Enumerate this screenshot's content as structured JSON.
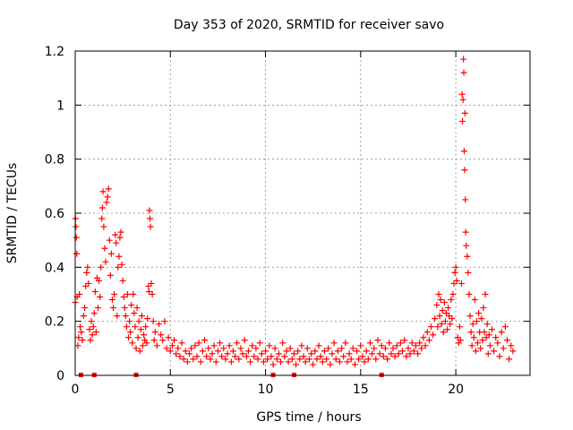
{
  "chart_data": {
    "type": "scatter",
    "title": "Day 353 of 2020, SRMTID for receiver savo",
    "xlabel": "GPS time / hours",
    "ylabel": "SRMTID / TECUs",
    "xlim": [
      0,
      23.9
    ],
    "ylim": [
      0,
      1.2
    ],
    "xticks": [
      0,
      5,
      10,
      15,
      20
    ],
    "yticks": [
      0,
      0.2,
      0.4,
      0.6,
      0.8,
      1,
      1.2
    ],
    "xtick_labels": [
      "0",
      "5",
      "10",
      "15",
      "20"
    ],
    "ytick_labels": [
      "0",
      "0.2",
      "0.4",
      "0.6",
      "0.8",
      "1",
      "1.2"
    ],
    "grid": true,
    "marker": "plus",
    "color": "#ff0000",
    "series": [
      {
        "name": "SRMTID",
        "points": [
          [
            0.0,
            0.27
          ],
          [
            0.02,
            0.58
          ],
          [
            0.04,
            0.55
          ],
          [
            0.06,
            0.51
          ],
          [
            0.08,
            0.45
          ],
          [
            0.1,
            0.29
          ],
          [
            0.14,
            0.11
          ],
          [
            0.18,
            0.14
          ],
          [
            0.22,
            0.3
          ],
          [
            0.26,
            0.18
          ],
          [
            0.32,
            0.16
          ],
          [
            0.38,
            0.13
          ],
          [
            0.44,
            0.22
          ],
          [
            0.5,
            0.25
          ],
          [
            0.55,
            0.33
          ],
          [
            0.6,
            0.38
          ],
          [
            0.65,
            0.4
          ],
          [
            0.7,
            0.34
          ],
          [
            0.75,
            0.17
          ],
          [
            0.8,
            0.13
          ],
          [
            0.85,
            0.2
          ],
          [
            0.9,
            0.15
          ],
          [
            0.95,
            0.18
          ],
          [
            1.0,
            0.23
          ],
          [
            1.05,
            0.31
          ],
          [
            1.1,
            0.16
          ],
          [
            1.15,
            0.36
          ],
          [
            1.2,
            0.25
          ],
          [
            1.25,
            0.35
          ],
          [
            1.3,
            0.29
          ],
          [
            1.35,
            0.4
          ],
          [
            1.4,
            0.58
          ],
          [
            1.43,
            0.62
          ],
          [
            1.46,
            0.68
          ],
          [
            1.5,
            0.55
          ],
          [
            1.55,
            0.47
          ],
          [
            1.6,
            0.42
          ],
          [
            1.65,
            0.64
          ],
          [
            1.7,
            0.66
          ],
          [
            1.75,
            0.69
          ],
          [
            1.8,
            0.5
          ],
          [
            1.85,
            0.37
          ],
          [
            1.9,
            0.45
          ],
          [
            1.95,
            0.28
          ],
          [
            2.0,
            0.25
          ],
          [
            2.05,
            0.3
          ],
          [
            2.1,
            0.52
          ],
          [
            2.15,
            0.49
          ],
          [
            2.2,
            0.22
          ],
          [
            2.25,
            0.4
          ],
          [
            2.3,
            0.44
          ],
          [
            2.35,
            0.51
          ],
          [
            2.4,
            0.53
          ],
          [
            2.45,
            0.41
          ],
          [
            2.5,
            0.35
          ],
          [
            2.55,
            0.29
          ],
          [
            2.6,
            0.25
          ],
          [
            2.65,
            0.22
          ],
          [
            2.7,
            0.18
          ],
          [
            2.75,
            0.3
          ],
          [
            2.8,
            0.14
          ],
          [
            2.85,
            0.2
          ],
          [
            2.9,
            0.16
          ],
          [
            2.95,
            0.26
          ],
          [
            3.0,
            0.12
          ],
          [
            3.05,
            0.3
          ],
          [
            3.1,
            0.23
          ],
          [
            3.15,
            0.18
          ],
          [
            3.2,
            0.1
          ],
          [
            3.25,
            0.25
          ],
          [
            3.3,
            0.14
          ],
          [
            3.35,
            0.2
          ],
          [
            3.4,
            0.09
          ],
          [
            3.45,
            0.17
          ],
          [
            3.5,
            0.22
          ],
          [
            3.55,
            0.11
          ],
          [
            3.6,
            0.15
          ],
          [
            3.65,
            0.13
          ],
          [
            3.7,
            0.18
          ],
          [
            3.75,
            0.12
          ],
          [
            3.8,
            0.21
          ],
          [
            3.85,
            0.33
          ],
          [
            3.88,
            0.31
          ],
          [
            3.9,
            0.61
          ],
          [
            3.93,
            0.58
          ],
          [
            3.96,
            0.55
          ],
          [
            4.0,
            0.34
          ],
          [
            4.05,
            0.3
          ],
          [
            4.1,
            0.2
          ],
          [
            4.15,
            0.13
          ],
          [
            4.2,
            0.16
          ],
          [
            4.3,
            0.11
          ],
          [
            4.4,
            0.19
          ],
          [
            4.5,
            0.15
          ],
          [
            4.6,
            0.13
          ],
          [
            4.7,
            0.2
          ],
          [
            4.8,
            0.1
          ],
          [
            4.9,
            0.14
          ],
          [
            5.0,
            0.09
          ],
          [
            5.1,
            0.11
          ],
          [
            5.2,
            0.13
          ],
          [
            5.3,
            0.08
          ],
          [
            5.4,
            0.1
          ],
          [
            5.5,
            0.07
          ],
          [
            5.6,
            0.12
          ],
          [
            5.7,
            0.06
          ],
          [
            5.8,
            0.09
          ],
          [
            5.9,
            0.05
          ],
          [
            6.0,
            0.08
          ],
          [
            6.1,
            0.1
          ],
          [
            6.2,
            0.06
          ],
          [
            6.3,
            0.11
          ],
          [
            6.4,
            0.07
          ],
          [
            6.5,
            0.12
          ],
          [
            6.6,
            0.05
          ],
          [
            6.7,
            0.09
          ],
          [
            6.8,
            0.13
          ],
          [
            6.9,
            0.07
          ],
          [
            7.0,
            0.1
          ],
          [
            7.1,
            0.06
          ],
          [
            7.2,
            0.08
          ],
          [
            7.3,
            0.11
          ],
          [
            7.4,
            0.05
          ],
          [
            7.5,
            0.09
          ],
          [
            7.6,
            0.12
          ],
          [
            7.7,
            0.07
          ],
          [
            7.8,
            0.1
          ],
          [
            7.9,
            0.06
          ],
          [
            8.0,
            0.08
          ],
          [
            8.1,
            0.11
          ],
          [
            8.2,
            0.05
          ],
          [
            8.3,
            0.09
          ],
          [
            8.4,
            0.07
          ],
          [
            8.5,
            0.12
          ],
          [
            8.6,
            0.06
          ],
          [
            8.7,
            0.1
          ],
          [
            8.8,
            0.08
          ],
          [
            8.9,
            0.13
          ],
          [
            9.0,
            0.07
          ],
          [
            9.1,
            0.09
          ],
          [
            9.2,
            0.05
          ],
          [
            9.3,
            0.11
          ],
          [
            9.4,
            0.07
          ],
          [
            9.5,
            0.1
          ],
          [
            9.6,
            0.06
          ],
          [
            9.7,
            0.12
          ],
          [
            9.8,
            0.08
          ],
          [
            9.9,
            0.05
          ],
          [
            10.0,
            0.09
          ],
          [
            10.1,
            0.06
          ],
          [
            10.2,
            0.11
          ],
          [
            10.3,
            0.07
          ],
          [
            10.4,
            0.04
          ],
          [
            10.5,
            0.1
          ],
          [
            10.6,
            0.06
          ],
          [
            10.7,
            0.08
          ],
          [
            10.8,
            0.05
          ],
          [
            10.9,
            0.12
          ],
          [
            11.0,
            0.07
          ],
          [
            11.1,
            0.09
          ],
          [
            11.2,
            0.05
          ],
          [
            11.3,
            0.1
          ],
          [
            11.4,
            0.06
          ],
          [
            11.5,
            0.08
          ],
          [
            11.6,
            0.04
          ],
          [
            11.7,
            0.09
          ],
          [
            11.8,
            0.06
          ],
          [
            11.9,
            0.11
          ],
          [
            12.0,
            0.07
          ],
          [
            12.1,
            0.05
          ],
          [
            12.2,
            0.1
          ],
          [
            12.3,
            0.06
          ],
          [
            12.4,
            0.08
          ],
          [
            12.5,
            0.04
          ],
          [
            12.6,
            0.09
          ],
          [
            12.7,
            0.06
          ],
          [
            12.8,
            0.11
          ],
          [
            12.9,
            0.07
          ],
          [
            13.0,
            0.05
          ],
          [
            13.1,
            0.09
          ],
          [
            13.2,
            0.06
          ],
          [
            13.3,
            0.1
          ],
          [
            13.4,
            0.04
          ],
          [
            13.5,
            0.08
          ],
          [
            13.6,
            0.12
          ],
          [
            13.7,
            0.06
          ],
          [
            13.8,
            0.09
          ],
          [
            13.9,
            0.05
          ],
          [
            14.0,
            0.1
          ],
          [
            14.1,
            0.07
          ],
          [
            14.2,
            0.12
          ],
          [
            14.3,
            0.05
          ],
          [
            14.4,
            0.08
          ],
          [
            14.5,
            0.06
          ],
          [
            14.6,
            0.1
          ],
          [
            14.7,
            0.04
          ],
          [
            14.8,
            0.09
          ],
          [
            14.9,
            0.06
          ],
          [
            15.0,
            0.11
          ],
          [
            15.1,
            0.07
          ],
          [
            15.2,
            0.05
          ],
          [
            15.3,
            0.09
          ],
          [
            15.4,
            0.06
          ],
          [
            15.5,
            0.12
          ],
          [
            15.6,
            0.08
          ],
          [
            15.7,
            0.1
          ],
          [
            15.8,
            0.06
          ],
          [
            15.9,
            0.13
          ],
          [
            16.0,
            0.08
          ],
          [
            16.1,
            0.11
          ],
          [
            16.2,
            0.07
          ],
          [
            16.3,
            0.1
          ],
          [
            16.4,
            0.06
          ],
          [
            16.5,
            0.12
          ],
          [
            16.6,
            0.08
          ],
          [
            16.7,
            0.1
          ],
          [
            16.8,
            0.07
          ],
          [
            16.9,
            0.11
          ],
          [
            17.0,
            0.08
          ],
          [
            17.1,
            0.12
          ],
          [
            17.2,
            0.09
          ],
          [
            17.3,
            0.13
          ],
          [
            17.4,
            0.07
          ],
          [
            17.5,
            0.1
          ],
          [
            17.6,
            0.08
          ],
          [
            17.7,
            0.12
          ],
          [
            17.8,
            0.09
          ],
          [
            17.9,
            0.11
          ],
          [
            18.0,
            0.08
          ],
          [
            18.1,
            0.12
          ],
          [
            18.2,
            0.1
          ],
          [
            18.3,
            0.14
          ],
          [
            18.4,
            0.11
          ],
          [
            18.5,
            0.16
          ],
          [
            18.6,
            0.13
          ],
          [
            18.7,
            0.18
          ],
          [
            18.8,
            0.15
          ],
          [
            18.9,
            0.21
          ],
          [
            19.0,
            0.26
          ],
          [
            19.05,
            0.18
          ],
          [
            19.1,
            0.3
          ],
          [
            19.15,
            0.22
          ],
          [
            19.2,
            0.28
          ],
          [
            19.25,
            0.19
          ],
          [
            19.3,
            0.24
          ],
          [
            19.35,
            0.16
          ],
          [
            19.4,
            0.27
          ],
          [
            19.45,
            0.2
          ],
          [
            19.5,
            0.23
          ],
          [
            19.55,
            0.17
          ],
          [
            19.6,
            0.25
          ],
          [
            19.65,
            0.22
          ],
          [
            19.7,
            0.19
          ],
          [
            19.75,
            0.28
          ],
          [
            19.8,
            0.21
          ],
          [
            19.85,
            0.3
          ],
          [
            19.9,
            0.34
          ],
          [
            19.95,
            0.38
          ],
          [
            20.0,
            0.4
          ],
          [
            20.05,
            0.35
          ],
          [
            20.1,
            0.14
          ],
          [
            20.15,
            0.12
          ],
          [
            20.2,
            0.18
          ],
          [
            20.25,
            0.13
          ],
          [
            20.3,
            0.34
          ],
          [
            20.33,
            1.04
          ],
          [
            20.35,
            0.94
          ],
          [
            20.38,
            1.02
          ],
          [
            20.4,
            1.17
          ],
          [
            20.42,
            1.12
          ],
          [
            20.44,
            0.83
          ],
          [
            20.46,
            0.76
          ],
          [
            20.48,
            0.97
          ],
          [
            20.5,
            0.65
          ],
          [
            20.52,
            0.53
          ],
          [
            20.55,
            0.48
          ],
          [
            20.6,
            0.44
          ],
          [
            20.65,
            0.38
          ],
          [
            20.7,
            0.3
          ],
          [
            20.75,
            0.22
          ],
          [
            20.8,
            0.16
          ],
          [
            20.85,
            0.11
          ],
          [
            20.9,
            0.19
          ],
          [
            20.95,
            0.14
          ],
          [
            21.0,
            0.28
          ],
          [
            21.05,
            0.09
          ],
          [
            21.1,
            0.2
          ],
          [
            21.15,
            0.12
          ],
          [
            21.2,
            0.23
          ],
          [
            21.25,
            0.16
          ],
          [
            21.3,
            0.1
          ],
          [
            21.35,
            0.21
          ],
          [
            21.4,
            0.13
          ],
          [
            21.45,
            0.25
          ],
          [
            21.5,
            0.16
          ],
          [
            21.55,
            0.3
          ],
          [
            21.6,
            0.14
          ],
          [
            21.65,
            0.19
          ],
          [
            21.7,
            0.08
          ],
          [
            21.75,
            0.15
          ],
          [
            21.8,
            0.11
          ],
          [
            21.9,
            0.17
          ],
          [
            22.0,
            0.09
          ],
          [
            22.1,
            0.14
          ],
          [
            22.2,
            0.12
          ],
          [
            22.3,
            0.07
          ],
          [
            22.4,
            0.16
          ],
          [
            22.5,
            0.1
          ],
          [
            22.6,
            0.18
          ],
          [
            22.7,
            0.13
          ],
          [
            22.8,
            0.06
          ],
          [
            22.9,
            0.11
          ],
          [
            23.0,
            0.09
          ]
        ]
      }
    ],
    "baseline_markers_x": [
      0.3,
      1.0,
      3.2,
      10.4,
      11.5,
      16.1
    ]
  }
}
